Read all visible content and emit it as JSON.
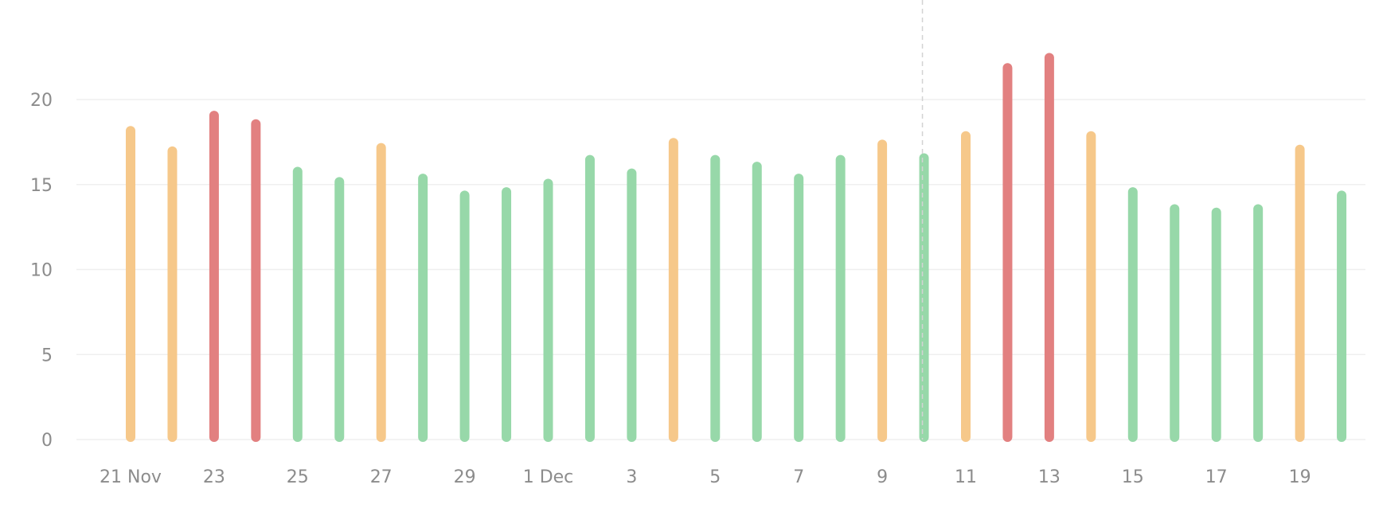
{
  "chart_data": {
    "type": "bar",
    "title": "",
    "xlabel": "",
    "ylabel": "",
    "ylim": [
      0,
      24
    ],
    "y_ticks": [
      0,
      5,
      10,
      15,
      20
    ],
    "grid": true,
    "legend": "none",
    "colors": {
      "green": "#97d8a9",
      "orange": "#f6c88a",
      "red": "#e28080",
      "grid": "#efefef",
      "axis_text": "#8c8c8c",
      "hover_line": "#d3d3d3"
    },
    "x_tick_labels": [
      "21 Nov",
      "23",
      "25",
      "27",
      "29",
      "1 Dec",
      "3",
      "5",
      "7",
      "9",
      "11",
      "13",
      "15",
      "17",
      "19"
    ],
    "highlighted_date": "10 Dec",
    "points": [
      {
        "date": "21 Nov",
        "value": 18.3,
        "status": "orange"
      },
      {
        "date": "22 Nov",
        "value": 17.1,
        "status": "orange"
      },
      {
        "date": "23 Nov",
        "value": 19.2,
        "status": "red"
      },
      {
        "date": "24 Nov",
        "value": 18.7,
        "status": "red"
      },
      {
        "date": "25 Nov",
        "value": 15.9,
        "status": "green"
      },
      {
        "date": "26 Nov",
        "value": 15.3,
        "status": "green"
      },
      {
        "date": "27 Nov",
        "value": 17.3,
        "status": "orange"
      },
      {
        "date": "28 Nov",
        "value": 15.5,
        "status": "green"
      },
      {
        "date": "29 Nov",
        "value": 14.5,
        "status": "green"
      },
      {
        "date": "30 Nov",
        "value": 14.7,
        "status": "green"
      },
      {
        "date": "1 Dec",
        "value": 15.2,
        "status": "green"
      },
      {
        "date": "2 Dec",
        "value": 16.6,
        "status": "green"
      },
      {
        "date": "3 Dec",
        "value": 15.8,
        "status": "green"
      },
      {
        "date": "4 Dec",
        "value": 17.6,
        "status": "orange"
      },
      {
        "date": "5 Dec",
        "value": 16.6,
        "status": "green"
      },
      {
        "date": "6 Dec",
        "value": 16.2,
        "status": "green"
      },
      {
        "date": "7 Dec",
        "value": 15.5,
        "status": "green"
      },
      {
        "date": "8 Dec",
        "value": 16.6,
        "status": "green"
      },
      {
        "date": "9 Dec",
        "value": 17.5,
        "status": "orange"
      },
      {
        "date": "10 Dec",
        "value": 16.7,
        "status": "green"
      },
      {
        "date": "11 Dec",
        "value": 18.0,
        "status": "orange"
      },
      {
        "date": "12 Dec",
        "value": 22.0,
        "status": "red"
      },
      {
        "date": "13 Dec",
        "value": 22.6,
        "status": "red"
      },
      {
        "date": "14 Dec",
        "value": 18.0,
        "status": "orange"
      },
      {
        "date": "15 Dec",
        "value": 14.7,
        "status": "green"
      },
      {
        "date": "16 Dec",
        "value": 13.7,
        "status": "green"
      },
      {
        "date": "17 Dec",
        "value": 13.5,
        "status": "green"
      },
      {
        "date": "18 Dec",
        "value": 13.7,
        "status": "green"
      },
      {
        "date": "19 Dec",
        "value": 17.2,
        "status": "orange"
      },
      {
        "date": "20 Dec",
        "value": 14.5,
        "status": "green"
      }
    ]
  }
}
